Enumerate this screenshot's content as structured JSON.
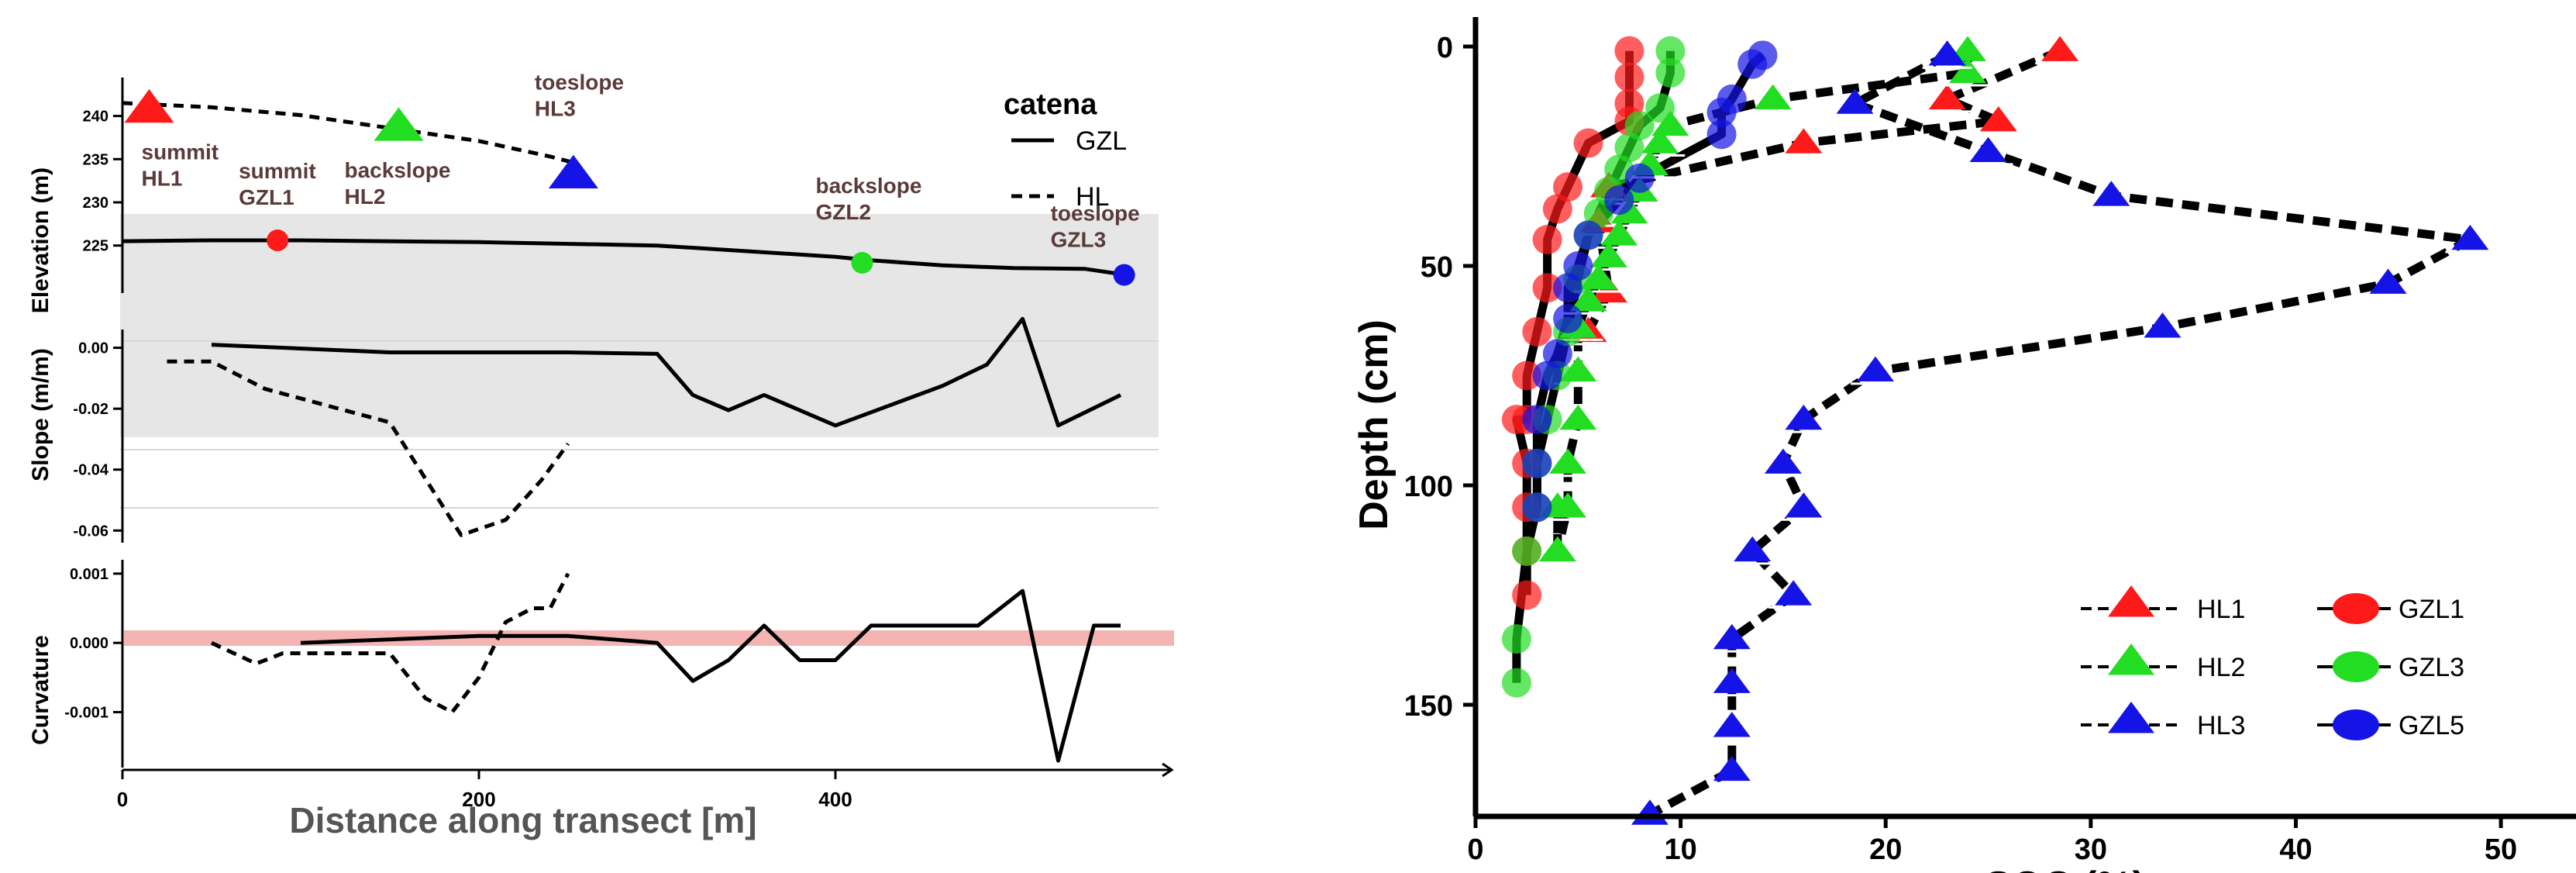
{
  "chart_data": [
    {
      "type": "line",
      "panel": "transect-profiles",
      "xlabel": "Distance along transect [m]",
      "x_ticks": [
        "0",
        "200",
        "400"
      ],
      "xlim": [
        0,
        585
      ],
      "legend": {
        "title": "catena",
        "entries": [
          {
            "label": "GZL",
            "style": "solid"
          },
          {
            "label": "HL",
            "style": "dashed"
          }
        ],
        "placement": "top-right"
      },
      "subplots": [
        {
          "name": "elevation",
          "ylabel": "Elevation (m)",
          "y_ticks": [
            "225",
            "230",
            "235",
            "240"
          ],
          "ylim": [
            219.5,
            244
          ],
          "series": [
            {
              "name": "GZL",
              "style": "solid",
              "x": [
                0,
                50,
                100,
                200,
                300,
                400,
                420,
                460,
                500,
                540,
                560
              ],
              "y": [
                225.5,
                225.6,
                225.6,
                225.4,
                225.0,
                223.7,
                223.3,
                222.7,
                222.4,
                222.3,
                221.7
              ]
            },
            {
              "name": "HL",
              "style": "dashed",
              "x": [
                0,
                50,
                100,
                150,
                200,
                240,
                255
              ],
              "y": [
                241.5,
                241.0,
                240.1,
                238.6,
                237.1,
                235.3,
                234.5
              ]
            }
          ],
          "markers": [
            {
              "label_top": "summit",
              "label_bottom": "HL1",
              "x": 15,
              "y": 240.8,
              "shape": "triangle",
              "color": "#ff1a1a"
            },
            {
              "label_top": "backslope",
              "label_bottom": "HL2",
              "x": 155,
              "y": 238.7,
              "shape": "triangle",
              "color": "#22dd22"
            },
            {
              "label_top": "toeslope",
              "label_bottom": "HL3",
              "x": 253,
              "y": 233.2,
              "shape": "triangle",
              "color": "#1414e6"
            },
            {
              "label_top": "summit",
              "label_bottom": "GZL1",
              "x": 87,
              "y": 225.6,
              "shape": "circle",
              "color": "#ff1a1a"
            },
            {
              "label_top": "backslope",
              "label_bottom": "GZL2",
              "x": 415,
              "y": 223.0,
              "shape": "circle",
              "color": "#22dd22"
            },
            {
              "label_top": "toeslope",
              "label_bottom": "GZL3",
              "x": 562,
              "y": 221.6,
              "shape": "circle",
              "color": "#1414e6"
            }
          ]
        },
        {
          "name": "slope",
          "ylabel": "Slope (m/m)",
          "y_ticks": [
            "-0.06",
            "-0.04",
            "-0.02",
            "0.00"
          ],
          "ylim": [
            -0.064,
            0.006
          ],
          "series": [
            {
              "name": "GZL",
              "style": "solid",
              "x": [
                50,
                150,
                250,
                300,
                320,
                340,
                360,
                400,
                460,
                485,
                505,
                525,
                560
              ],
              "y": [
                0.001,
                -0.0015,
                -0.0015,
                -0.002,
                -0.0155,
                -0.0205,
                -0.0155,
                -0.0255,
                -0.0125,
                -0.0055,
                0.0095,
                -0.0255,
                -0.0155
              ]
            },
            {
              "name": "HL",
              "style": "dashed",
              "x": [
                25,
                50,
                60,
                80,
                150,
                190,
                215,
                235,
                250
              ],
              "y": [
                -0.0045,
                -0.0045,
                -0.0075,
                -0.0135,
                -0.0245,
                -0.0615,
                -0.0565,
                -0.0435,
                -0.0315
              ]
            }
          ],
          "band": {
            "from": -0.024,
            "to": 0.005
          }
        },
        {
          "name": "curvature",
          "ylabel": "Curvature",
          "y_ticks": [
            "-0.001",
            "0.000",
            "0.001"
          ],
          "ylim": [
            -0.0018,
            0.0012
          ],
          "series": [
            {
              "name": "GZL",
              "style": "solid",
              "x": [
                100,
                200,
                250,
                300,
                320,
                340,
                360,
                380,
                400,
                420,
                460,
                480,
                505,
                525,
                545,
                560
              ],
              "y": [
                0.0,
                0.0001,
                0.0001,
                0.0,
                -0.00055,
                -0.00025,
                0.00025,
                -0.00025,
                -0.00025,
                0.00025,
                0.00025,
                0.00025,
                0.00075,
                -0.0017,
                0.00025,
                0.00025
              ]
            },
            {
              "name": "HL",
              "style": "dashed",
              "x": [
                50,
                75,
                90,
                120,
                150,
                170,
                185,
                200,
                215,
                230,
                240,
                250
              ],
              "y": [
                0.0,
                -0.0003,
                -0.00015,
                -0.00015,
                -0.00015,
                -0.0008,
                -0.001,
                -0.0005,
                0.0003,
                0.0005,
                0.0005,
                0.001
              ]
            }
          ],
          "zero_band": true
        }
      ]
    },
    {
      "type": "line",
      "panel": "depth-profiles",
      "xlabel": "SOC (%)",
      "ylabel": "Depth (cm)",
      "x_ticks": [
        "0",
        "10",
        "20",
        "30",
        "40",
        "50"
      ],
      "y_ticks": [
        "0",
        "50",
        "100",
        "150"
      ],
      "xlim": [
        0,
        52
      ],
      "ylim": [
        175,
        -6
      ],
      "series": [
        {
          "name": "HL1",
          "marker": "triangle",
          "color": "#ff1a1a",
          "line": "dashed",
          "soc": [
            28.5,
            23.0,
            25.5,
            16.0,
            6.5,
            6.0,
            6.5,
            5.5
          ],
          "depth": [
            1,
            12,
            17,
            22,
            32,
            40,
            56,
            65
          ]
        },
        {
          "name": "HL2",
          "marker": "triangle",
          "color": "#22dd22",
          "line": "dashed",
          "soc": [
            24.0,
            24.0,
            14.5,
            9.5,
            9.0,
            8.5,
            8.0,
            7.5,
            7.0,
            6.5,
            6.0,
            5.5,
            5.0,
            5.0,
            5.0,
            4.5,
            4.5,
            4.0,
            4.0,
            4.0
          ],
          "depth": [
            1,
            6,
            12,
            18,
            22,
            27,
            33,
            38,
            43,
            48,
            53,
            58,
            64,
            74,
            85,
            95,
            105,
            115,
            105,
            115
          ]
        },
        {
          "name": "HL3",
          "marker": "triangle",
          "color": "#1414e6",
          "line": "dashed",
          "soc": [
            23.0,
            18.5,
            25.0,
            31.0,
            48.5,
            44.5,
            33.5,
            19.5,
            16.0,
            15.0,
            16.0,
            13.5,
            15.5,
            12.5,
            12.5,
            12.5,
            12.5,
            8.5
          ],
          "depth": [
            2,
            13,
            24,
            34,
            44,
            54,
            64,
            74,
            85,
            95,
            105,
            115,
            125,
            135,
            145,
            155,
            165,
            175
          ]
        },
        {
          "name": "GZL1",
          "marker": "circle",
          "color": "#ff1a1a",
          "line": "solid",
          "soc": [
            7.5,
            7.5,
            7.5,
            7.5,
            5.5,
            4.5,
            4.0,
            3.5,
            3.5,
            3.0,
            2.5,
            2.5,
            2.0,
            2.5,
            2.5,
            2.5,
            2.5
          ],
          "depth": [
            1,
            7,
            13,
            17,
            22,
            32,
            37,
            44,
            55,
            65,
            75,
            85,
            85,
            95,
            105,
            115,
            125
          ]
        },
        {
          "name": "GZL3",
          "marker": "circle",
          "color": "#22dd22",
          "line": "solid",
          "soc": [
            9.5,
            9.5,
            9.0,
            8.0,
            7.5,
            7.0,
            6.5,
            6.0,
            5.5,
            5.0,
            4.5,
            4.0,
            3.5,
            3.0,
            3.0,
            2.5,
            2.0,
            2.0
          ],
          "depth": [
            1,
            6,
            14,
            18,
            23,
            28,
            33,
            38,
            43,
            53,
            65,
            75,
            85,
            95,
            105,
            115,
            135,
            145
          ]
        },
        {
          "name": "GZL5",
          "marker": "circle",
          "color": "#1414e6",
          "line": "solid",
          "soc": [
            14.0,
            13.5,
            12.5,
            12.0,
            12.0,
            8.0,
            7.0,
            5.5,
            5.0,
            4.5,
            4.5,
            4.0,
            3.5,
            3.0,
            3.0,
            3.0
          ],
          "depth": [
            2,
            4,
            12,
            15,
            20,
            30,
            35,
            43,
            50,
            55,
            62,
            70,
            75,
            85,
            95,
            105
          ]
        }
      ],
      "legend": {
        "placement": "bottom-right",
        "entries": [
          "HL1",
          "HL2",
          "HL3",
          "GZL1",
          "GZL3",
          "GZL5"
        ]
      }
    }
  ]
}
